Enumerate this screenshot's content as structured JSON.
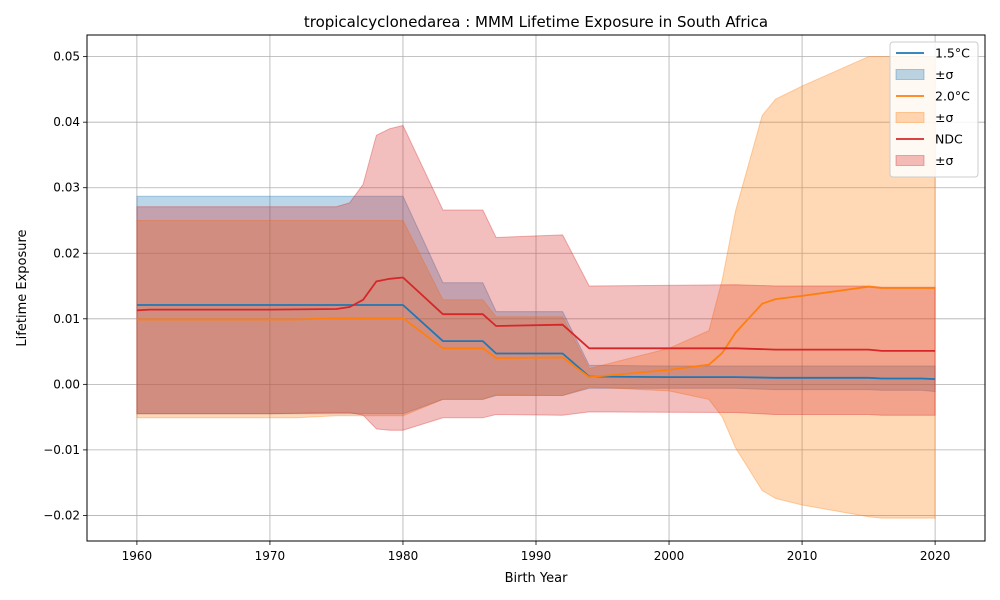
{
  "chart_data": {
    "type": "line",
    "title": "tropicalcyclonedarea : MMM Lifetime Exposure in South Africa",
    "xlabel": "Birth Year",
    "ylabel": "Lifetime Exposure",
    "xlim": [
      1956.25,
      2023.75
    ],
    "ylim": [
      -0.0239,
      0.0533
    ],
    "xticks": [
      1960,
      1970,
      1980,
      1990,
      2000,
      2010,
      2020
    ],
    "xtick_labels": [
      "1960",
      "1970",
      "1980",
      "1990",
      "2000",
      "2010",
      "2020"
    ],
    "yticks": [
      -0.02,
      -0.01,
      0.0,
      0.01,
      0.02,
      0.03,
      0.04,
      0.05
    ],
    "ytick_labels": [
      "−0.02",
      "−0.01",
      "0.00",
      "0.01",
      "0.02",
      "0.03",
      "0.04",
      "0.05"
    ],
    "grid": true,
    "legend_position": "top-right",
    "series": [
      {
        "name": "1.5°C",
        "band_name": "±σ",
        "color": "#1f77b4",
        "band_color": "#aac8e0",
        "x": [
          1960,
          1975,
          1980,
          1983,
          1986,
          1987,
          1992,
          1994,
          2000,
          2005,
          2008,
          2015,
          2016,
          2019,
          2020
        ],
        "values": [
          0.0121,
          0.0121,
          0.0121,
          0.0066,
          0.0066,
          0.0047,
          0.0047,
          0.0012,
          0.0011,
          0.0011,
          0.001,
          0.001,
          0.0009,
          0.0009,
          0.0008
        ],
        "upper": [
          0.0287,
          0.0287,
          0.0287,
          0.0155,
          0.0155,
          0.0111,
          0.0111,
          0.0029,
          0.0028,
          0.0028,
          0.0028,
          0.0028,
          0.0028,
          0.0028,
          0.0028
        ],
        "lower": [
          -0.0045,
          -0.0045,
          -0.0045,
          -0.0023,
          -0.0023,
          -0.0017,
          -0.0017,
          -0.0006,
          -0.0006,
          -0.0006,
          -0.0008,
          -0.0008,
          -0.0009,
          -0.0009,
          -0.0011
        ]
      },
      {
        "name": "2.0°C",
        "band_name": "±σ",
        "color": "#ff7f0e",
        "band_color": "#ffc891",
        "x": [
          1960,
          1972,
          1975,
          1980,
          1983,
          1986,
          1987,
          1992,
          1994,
          2000,
          2003,
          2004,
          2005,
          2007,
          2008,
          2010,
          2015,
          2016,
          2020
        ],
        "values": [
          0.0099,
          0.0099,
          0.0101,
          0.0101,
          0.0055,
          0.0055,
          0.004,
          0.0041,
          0.0011,
          0.0022,
          0.003,
          0.0048,
          0.0079,
          0.0123,
          0.013,
          0.0135,
          0.0149,
          0.0147,
          0.0147
        ],
        "upper": [
          0.025,
          0.025,
          0.025,
          0.025,
          0.0129,
          0.0129,
          0.0103,
          0.0103,
          0.0024,
          0.0055,
          0.0082,
          0.016,
          0.0265,
          0.041,
          0.0435,
          0.0455,
          0.05,
          0.05,
          0.05
        ],
        "lower": [
          -0.0051,
          -0.0051,
          -0.0048,
          -0.0048,
          -0.0023,
          -0.0023,
          -0.0016,
          -0.0017,
          -0.0004,
          -0.001,
          -0.0023,
          -0.005,
          -0.0097,
          -0.0162,
          -0.0174,
          -0.0184,
          -0.0202,
          -0.0204,
          -0.0204
        ]
      },
      {
        "name": "NDC",
        "band_name": "±σ",
        "color": "#d62728",
        "band_color": "#f0a3a3",
        "x": [
          1960,
          1961,
          1970,
          1975,
          1976,
          1977,
          1978,
          1979,
          1980,
          1983,
          1986,
          1987,
          1992,
          1994,
          2005,
          2008,
          2015,
          2016,
          2020
        ],
        "values": [
          0.0113,
          0.0114,
          0.0114,
          0.0115,
          0.0118,
          0.0129,
          0.0157,
          0.0161,
          0.0163,
          0.0107,
          0.0107,
          0.0089,
          0.0091,
          0.0055,
          0.0055,
          0.0053,
          0.0053,
          0.0051,
          0.0051
        ],
        "upper": [
          0.0271,
          0.0271,
          0.0271,
          0.0271,
          0.0277,
          0.0305,
          0.038,
          0.039,
          0.0395,
          0.0266,
          0.0266,
          0.0224,
          0.0228,
          0.015,
          0.0152,
          0.015,
          0.015,
          0.0148,
          0.0148
        ],
        "lower": [
          -0.0045,
          -0.0045,
          -0.0045,
          -0.0043,
          -0.0043,
          -0.0047,
          -0.0068,
          -0.007,
          -0.007,
          -0.0051,
          -0.0051,
          -0.0046,
          -0.0047,
          -0.0042,
          -0.0043,
          -0.0046,
          -0.0046,
          -0.0047,
          -0.0047
        ]
      }
    ]
  }
}
